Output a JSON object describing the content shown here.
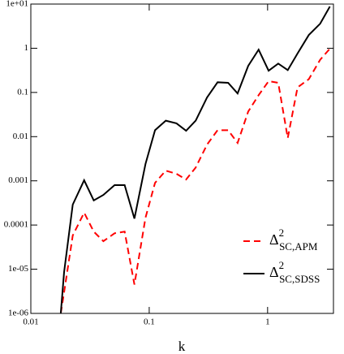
{
  "chart_data": {
    "type": "line",
    "xlabel": "k",
    "x": [
      0.0179,
      0.0191,
      0.0226,
      0.0282,
      0.034,
      0.041,
      0.051,
      0.062,
      0.075,
      0.093,
      0.112,
      0.138,
      0.17,
      0.205,
      0.247,
      0.308,
      0.378,
      0.464,
      0.558,
      0.686,
      0.84,
      1.02,
      1.23,
      1.48,
      1.79,
      2.23,
      2.78,
      3.36
    ],
    "series": [
      {
        "name": "Δ",
        "name_superscript": "2",
        "name_subscript": "SC,APM",
        "color": "#ff0000",
        "dashed": true,
        "values": [
          1e-06,
          3e-06,
          5.8e-05,
          0.00019,
          7.1e-05,
          4.3e-05,
          6.5e-05,
          7.1e-05,
          4.5e-06,
          0.000146,
          0.0009,
          0.0017,
          0.00144,
          0.00107,
          0.002,
          0.0066,
          0.014,
          0.014,
          0.0072,
          0.037,
          0.087,
          0.18,
          0.165,
          0.0093,
          0.13,
          0.2,
          0.55,
          0.98
        ]
      },
      {
        "name": "Δ",
        "name_superscript": "2",
        "name_subscript": "SC,SDSS",
        "color": "#000000",
        "dashed": false,
        "values": [
          1e-06,
          8.6e-06,
          0.00029,
          0.00103,
          0.00036,
          0.00048,
          0.0008,
          0.0008,
          0.00014,
          0.0024,
          0.014,
          0.023,
          0.02,
          0.0136,
          0.023,
          0.077,
          0.17,
          0.165,
          0.095,
          0.4,
          0.93,
          0.31,
          0.45,
          0.32,
          0.76,
          2.0,
          3.6,
          8.8
        ]
      }
    ],
    "xlim": [
      0.01,
      3.6
    ],
    "ylim": [
      1e-06,
      10
    ],
    "xscale": "log",
    "yscale": "log",
    "xticks": [
      0.01,
      0.1,
      1
    ],
    "yticks": [
      {
        "value": 10,
        "label": "1e+01"
      },
      1,
      0.1,
      0.01,
      0.001,
      0.0001,
      {
        "value": 1e-05,
        "label": "1e-05"
      },
      {
        "value": 1e-06,
        "label": "1e-06"
      }
    ],
    "legend": "lower right"
  }
}
